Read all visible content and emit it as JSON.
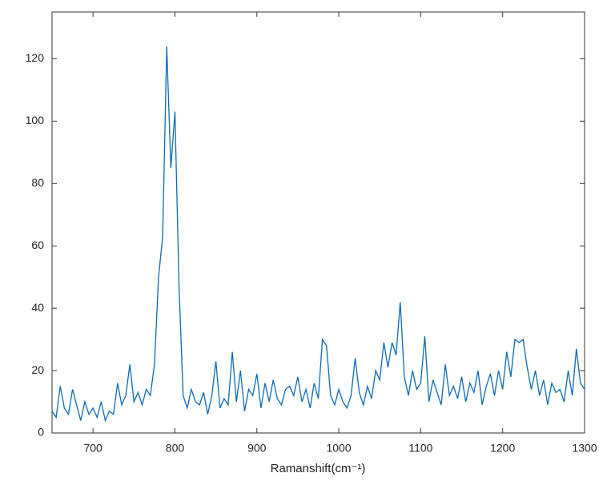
{
  "chart_data": {
    "type": "line",
    "xlabel": "Ramanshift(cm⁻¹)",
    "x": [
      650,
      655,
      660,
      665,
      670,
      675,
      680,
      685,
      690,
      695,
      700,
      705,
      710,
      715,
      720,
      725,
      730,
      735,
      740,
      745,
      750,
      755,
      760,
      765,
      770,
      775,
      780,
      785,
      790,
      795,
      800,
      805,
      810,
      815,
      820,
      825,
      830,
      835,
      840,
      845,
      850,
      855,
      860,
      865,
      870,
      875,
      880,
      885,
      890,
      895,
      900,
      905,
      910,
      915,
      920,
      925,
      930,
      935,
      940,
      945,
      950,
      955,
      960,
      965,
      970,
      975,
      980,
      985,
      990,
      995,
      1000,
      1005,
      1010,
      1015,
      1020,
      1025,
      1030,
      1035,
      1040,
      1045,
      1050,
      1055,
      1060,
      1065,
      1070,
      1075,
      1080,
      1085,
      1090,
      1095,
      1100,
      1105,
      1110,
      1115,
      1120,
      1125,
      1130,
      1135,
      1140,
      1145,
      1150,
      1155,
      1160,
      1165,
      1170,
      1175,
      1180,
      1185,
      1190,
      1195,
      1200,
      1205,
      1210,
      1215,
      1220,
      1225,
      1230,
      1235,
      1240,
      1245,
      1250,
      1255,
      1260,
      1265,
      1270,
      1275,
      1280,
      1285,
      1290,
      1295,
      1300
    ],
    "values": [
      7,
      5,
      15,
      8,
      6,
      14,
      9,
      4,
      10,
      6,
      8,
      5,
      10,
      4,
      7,
      6,
      16,
      9,
      12,
      22,
      10,
      13,
      9,
      14,
      12,
      22,
      50,
      63,
      124,
      85,
      103,
      47,
      12,
      8,
      14,
      10,
      9,
      13,
      6,
      12,
      23,
      8,
      11,
      9,
      26,
      10,
      20,
      7,
      14,
      12,
      19,
      8,
      16,
      10,
      17,
      11,
      9,
      14,
      15,
      12,
      18,
      10,
      14,
      8,
      16,
      11,
      30,
      28,
      12,
      9,
      14,
      10,
      8,
      12,
      24,
      13,
      9,
      15,
      11,
      20,
      17,
      29,
      21,
      29,
      25,
      42,
      18,
      12,
      20,
      14,
      16,
      31,
      10,
      17,
      13,
      9,
      22,
      12,
      15,
      11,
      18,
      10,
      16,
      13,
      20,
      9,
      15,
      19,
      12,
      20,
      14,
      26,
      18,
      30,
      29,
      30,
      21,
      14,
      20,
      12,
      17,
      9,
      16,
      13,
      14,
      10,
      20,
      12,
      27,
      16,
      14
    ],
    "color": "#0e6ab4",
    "xlim": [
      650,
      1300
    ],
    "ylim": [
      0,
      135
    ],
    "xticks": [
      700,
      800,
      900,
      1000,
      1100,
      1200,
      1300
    ],
    "yticks": [
      0,
      20,
      40,
      60,
      80,
      100,
      120
    ]
  }
}
